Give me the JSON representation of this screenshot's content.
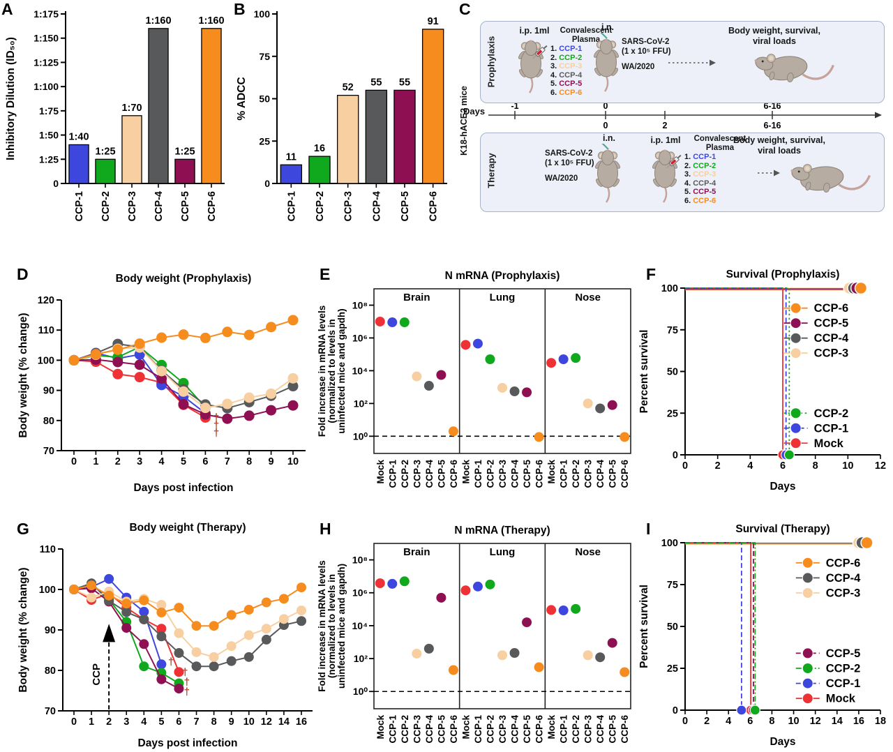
{
  "panel_labels": {
    "A": "A",
    "B": "B",
    "D": "D",
    "E": "E",
    "F": "F",
    "G": "G",
    "H": "H",
    "I": "I"
  },
  "colors": {
    "Mock": "#ee3134",
    "CCP-1": "#3e47dd",
    "CCP-2": "#10a81c",
    "CCP-3": "#f7cfa0",
    "CCP-4": "#58595b",
    "CCP-5": "#8e1052",
    "CCP-6": "#f68b1e",
    "dagger": "#b5432c"
  },
  "diagram": {
    "label": "C",
    "side_label": "K18-hACE2 mice",
    "days_label": "Days",
    "plasma_items": [
      {
        "num": "1.",
        "name": "CCP-1"
      },
      {
        "num": "2.",
        "name": "CCP-2"
      },
      {
        "num": "3.",
        "name": "CCP-3"
      },
      {
        "num": "4.",
        "name": "CCP-4"
      },
      {
        "num": "5.",
        "name": "CCP-5"
      },
      {
        "num": "6.",
        "name": "CCP-6"
      }
    ],
    "timeline": {
      "top_ticks": [
        "-1",
        "0",
        "6-16"
      ],
      "bottom_ticks": [
        "0",
        "2",
        "6-16"
      ]
    },
    "prophylaxis": {
      "row_label": "Prophylaxis",
      "injection": "i.p. 1ml",
      "plasma_title_1": "Convalescent",
      "plasma_title_2": "Plasma",
      "infection_route": "i.n.",
      "virus_1": "SARS-CoV-2",
      "virus_2": "(1 x 10⁵ FFU)",
      "strain": "WA/2020",
      "outcome_1": "Body weight, survival,",
      "outcome_2": "viral loads"
    },
    "therapy": {
      "row_label": "Therapy",
      "injection": "i.p. 1ml",
      "plasma_title_1": "Convalescent",
      "plasma_title_2": "Plasma",
      "infection_route": "i.n.",
      "virus_1": "SARS-CoV-2",
      "virus_2": "(1 x 10⁵ FFU)",
      "strain": "WA/2020",
      "outcome_1": "Body weight, survival,",
      "outcome_2": "viral loads"
    }
  },
  "chart_data": [
    {
      "panel": "A",
      "type": "bar",
      "categories": [
        "CCP-1",
        "CCP-2",
        "CCP-3",
        "CCP-4",
        "CCP-5",
        "CCP-6"
      ],
      "values": [
        40,
        25,
        70,
        160,
        25,
        160
      ],
      "bar_labels": [
        "1:40",
        "1:25",
        "1:70",
        "1:160",
        "1:25",
        "1:160"
      ],
      "ylabel": "Inhibitory Dilution (ID₅₀)",
      "ylim": [
        0,
        175
      ],
      "yticks": [
        {
          "v": 0,
          "l": "0"
        },
        {
          "v": 25,
          "l": "1:25"
        },
        {
          "v": 50,
          "l": "1:50"
        },
        {
          "v": 75,
          "l": "1:75"
        },
        {
          "v": 100,
          "l": "1:100"
        },
        {
          "v": 125,
          "l": "1:125"
        },
        {
          "v": 150,
          "l": "1:150"
        },
        {
          "v": 175,
          "l": "1:175"
        }
      ]
    },
    {
      "panel": "B",
      "type": "bar",
      "categories": [
        "CCP-1",
        "CCP-2",
        "CCP-3",
        "CCP-4",
        "CCP-5",
        "CCP-6"
      ],
      "values": [
        11,
        16,
        52,
        55,
        55,
        91
      ],
      "bar_labels": [
        "11",
        "16",
        "52",
        "55",
        "55",
        "91"
      ],
      "ylabel": "% ADCC",
      "ylim": [
        0,
        100
      ],
      "yticks": [
        {
          "v": 0,
          "l": "0"
        },
        {
          "v": 25,
          "l": "25"
        },
        {
          "v": 50,
          "l": "50"
        },
        {
          "v": 75,
          "l": "75"
        },
        {
          "v": 100,
          "l": "100"
        }
      ]
    },
    {
      "panel": "D",
      "type": "line",
      "title": "Body weight (Prophylaxis)",
      "xlabel": "Days post infection",
      "ylabel": "Body weight (% change)",
      "xticklabels": [
        "0",
        "1",
        "2",
        "3",
        "4",
        "5",
        "6",
        "7",
        "8",
        "9",
        "10"
      ],
      "ylim": [
        70,
        120
      ],
      "yticks": [
        70,
        80,
        90,
        100,
        110,
        120
      ],
      "series": [
        {
          "name": "Mock",
          "values": [
            100,
            99.5,
            95.4,
            94.4,
            92.6,
            85.2,
            81
          ]
        },
        {
          "name": "CCP-1",
          "values": [
            100,
            102.4,
            100.6,
            101.9,
            91.8,
            88,
            82.4
          ]
        },
        {
          "name": "CCP-2",
          "values": [
            100,
            101.6,
            101,
            104.4,
            98.4,
            92.4,
            84.4
          ]
        },
        {
          "name": "CCP-5",
          "values": [
            100,
            100.2,
            99.4,
            98.5,
            93.9,
            85.4,
            82,
            80.6,
            81.6,
            83.4,
            85
          ]
        },
        {
          "name": "CCP-4",
          "values": [
            100,
            102.3,
            105.4,
            104.4,
            96.6,
            90.4,
            85.3,
            84.1,
            86.1,
            88.2,
            91.4
          ]
        },
        {
          "name": "CCP-3",
          "values": [
            100,
            101.8,
            103.8,
            104.2,
            96.4,
            89.6,
            84.2,
            85.5,
            87.6,
            88.9,
            94
          ]
        },
        {
          "name": "CCP-6",
          "values": [
            100,
            102,
            103.5,
            105.5,
            107.5,
            108.5,
            107.4,
            109.4,
            108.4,
            111,
            113.3
          ]
        }
      ],
      "daggers": [
        {
          "x": 6.5,
          "y": 79.8
        },
        {
          "x": 6.5,
          "y": 77.3
        },
        {
          "x": 6.5,
          "y": 74.8
        }
      ]
    },
    {
      "panel": "G",
      "type": "line",
      "title": "Body weight (Therapy)",
      "xlabel": "Days post infection",
      "ylabel": "Body weight (% change)",
      "xticklabels": [
        "0",
        "1",
        "2",
        "3",
        "4",
        "5",
        "6",
        "7",
        "8",
        "9",
        "10",
        "12",
        "14",
        "16"
      ],
      "ylim": [
        70,
        110
      ],
      "yticks": [
        70,
        80,
        90,
        100,
        110
      ],
      "series": [
        {
          "name": "Mock",
          "values": [
            100,
            97.4,
            99,
            95.5,
            92.6,
            90.3,
            79.6
          ]
        },
        {
          "name": "CCP-1",
          "values": [
            100,
            100.6,
            102.6,
            98,
            94.5,
            81.5
          ]
        },
        {
          "name": "CCP-2",
          "values": [
            100,
            101.5,
            97.5,
            92,
            81,
            79.4,
            76.8
          ]
        },
        {
          "name": "CCP-5",
          "values": [
            100,
            100.3,
            97,
            90.5,
            86.5,
            77.8,
            75.5
          ]
        },
        {
          "name": "CCP-4",
          "values": [
            100,
            101.5,
            97.2,
            94.4,
            92.6,
            88.4,
            84.3,
            81,
            81,
            82.3,
            83.3,
            87.6,
            91.2,
            92.2
          ]
        },
        {
          "name": "CCP-3",
          "values": [
            100,
            98,
            99.5,
            97,
            97.7,
            96.2,
            89.2,
            84.5,
            83.3,
            86,
            88.7,
            90.3,
            92.7,
            94.8
          ]
        },
        {
          "name": "CCP-6",
          "values": [
            100,
            101,
            98.5,
            96.5,
            97.3,
            94.3,
            95.5,
            91,
            91,
            93.7,
            95,
            96.8,
            97.7,
            100.5
          ]
        }
      ],
      "daggers": [
        {
          "x": 5.55,
          "y": 81.3
        },
        {
          "x": 6.35,
          "y": 78.7
        },
        {
          "x": 6.45,
          "y": 76.3
        },
        {
          "x": 6.45,
          "y": 73.9
        }
      ],
      "arrow": {
        "x": 2,
        "label": "CCP"
      }
    },
    {
      "panel": "E",
      "type": "dotlog",
      "title": "N mRNA (Prophylaxis)",
      "groups": [
        "Brain",
        "Lung",
        "Nose"
      ],
      "categories": [
        "Mock",
        "CCP-1",
        "CCP-2",
        "CCP-3",
        "CCP-4",
        "CCP-5",
        "CCP-6"
      ],
      "ylabel_lines": [
        "Fold increase in mRNA levels",
        "(normalized to levels in",
        "uninfected mice and gapdh)"
      ],
      "yticks": [
        {
          "e": 0,
          "l": "10⁰"
        },
        {
          "e": 2,
          "l": "10²"
        },
        {
          "e": 4,
          "l": "10⁴"
        },
        {
          "e": 6,
          "l": "10⁶"
        },
        {
          "e": 8,
          "l": "10⁸"
        }
      ],
      "baseline_exp": 0,
      "values": {
        "Brain": [
          10000000,
          9000000,
          9000000,
          4500,
          1200,
          5500,
          2
        ],
        "Lung": [
          380000,
          450000,
          50000,
          900,
          550,
          480,
          0.9
        ],
        "Nose": [
          30000,
          50000,
          60000,
          100,
          50,
          80,
          0.9
        ]
      }
    },
    {
      "panel": "H",
      "type": "dotlog",
      "title": "N mRNA (Therapy)",
      "groups": [
        "Brain",
        "Lung",
        "Nose"
      ],
      "categories": [
        "Mock",
        "CCP-1",
        "CCP-2",
        "CCP-3",
        "CCP-4",
        "CCP-5",
        "CCP-6"
      ],
      "ylabel_lines": [
        "Fold increase in mRNA levels",
        "(normalized to levels in",
        "uninfected mice and gapdh)"
      ],
      "yticks": [
        {
          "e": 0,
          "l": "10⁰"
        },
        {
          "e": 2,
          "l": "10²"
        },
        {
          "e": 4,
          "l": "10⁴"
        },
        {
          "e": 6,
          "l": "10⁶"
        },
        {
          "e": 8,
          "l": "10⁸"
        }
      ],
      "baseline_exp": 0,
      "values": {
        "Brain": [
          3800000,
          3500000,
          5000000,
          200,
          400,
          500000,
          20
        ],
        "Lung": [
          1400000,
          2400000,
          3200000,
          160,
          220,
          16000,
          30
        ],
        "Nose": [
          90000,
          85000,
          105000,
          160,
          120,
          900,
          15
        ]
      }
    },
    {
      "panel": "F",
      "type": "survival",
      "title": "Survival (Prophylaxis)",
      "xlabel": "Days",
      "ylabel": "Percent survival",
      "xlim": [
        0,
        12
      ],
      "xticks": [
        0,
        2,
        4,
        6,
        8,
        10,
        12
      ],
      "ylim": [
        0,
        100
      ],
      "yticks": [
        0,
        25,
        50,
        75,
        100
      ],
      "curves": [
        {
          "name": "Mock",
          "style": "solid",
          "drop": 6.0
        },
        {
          "name": "CCP-1",
          "style": "dashed",
          "drop": 6.2
        },
        {
          "name": "CCP-2",
          "style": "dotted",
          "drop": 6.4
        },
        {
          "name": "CCP-3",
          "style": "solid",
          "end": 10.1
        },
        {
          "name": "CCP-4",
          "style": "solid",
          "end": 10.35
        },
        {
          "name": "CCP-5",
          "style": "solid",
          "end": 10.55
        },
        {
          "name": "CCP-6",
          "style": "solid",
          "end": 10.8
        }
      ],
      "legend": {
        "x": 6.8,
        "groups": [
          [
            {
              "name": "CCP-6",
              "y": 88
            },
            {
              "name": "CCP-5",
              "y": 79
            },
            {
              "name": "CCP-4",
              "y": 70
            },
            {
              "name": "CCP-3",
              "y": 61
            }
          ],
          [
            {
              "name": "CCP-2",
              "y": 25
            },
            {
              "name": "CCP-1",
              "y": 16
            },
            {
              "name": "Mock",
              "y": 7
            }
          ]
        ]
      }
    },
    {
      "panel": "I",
      "type": "survival",
      "title": "Survival (Therapy)",
      "xlabel": "Days",
      "ylabel": "Percent survival",
      "xlim": [
        0,
        18
      ],
      "xticks": [
        0,
        2,
        4,
        6,
        8,
        10,
        12,
        14,
        16,
        18
      ],
      "ylim": [
        0,
        100
      ],
      "yticks": [
        0,
        25,
        50,
        75,
        100
      ],
      "curves": [
        {
          "name": "Mock",
          "style": "solid",
          "drop": 6.05
        },
        {
          "name": "CCP-1",
          "style": "dashed",
          "drop": 5.2
        },
        {
          "name": "CCP-5",
          "style": "dashed",
          "drop": 6.3
        },
        {
          "name": "CCP-2",
          "style": "dashdot",
          "drop": 6.45
        },
        {
          "name": "CCP-3",
          "style": "solid",
          "end": 16.0
        },
        {
          "name": "CCP-4",
          "style": "solid",
          "end": 16.3
        },
        {
          "name": "CCP-6",
          "style": "solid",
          "end": 16.75
        }
      ],
      "legend": {
        "x": 11.3,
        "groups": [
          [
            {
              "name": "CCP-6",
              "y": 88
            },
            {
              "name": "CCP-4",
              "y": 79
            },
            {
              "name": "CCP-3",
              "y": 70
            }
          ],
          [
            {
              "name": "CCP-5",
              "y": 34
            },
            {
              "name": "CCP-2",
              "y": 25
            },
            {
              "name": "CCP-1",
              "y": 16
            },
            {
              "name": "Mock",
              "y": 7
            }
          ]
        ]
      }
    }
  ]
}
